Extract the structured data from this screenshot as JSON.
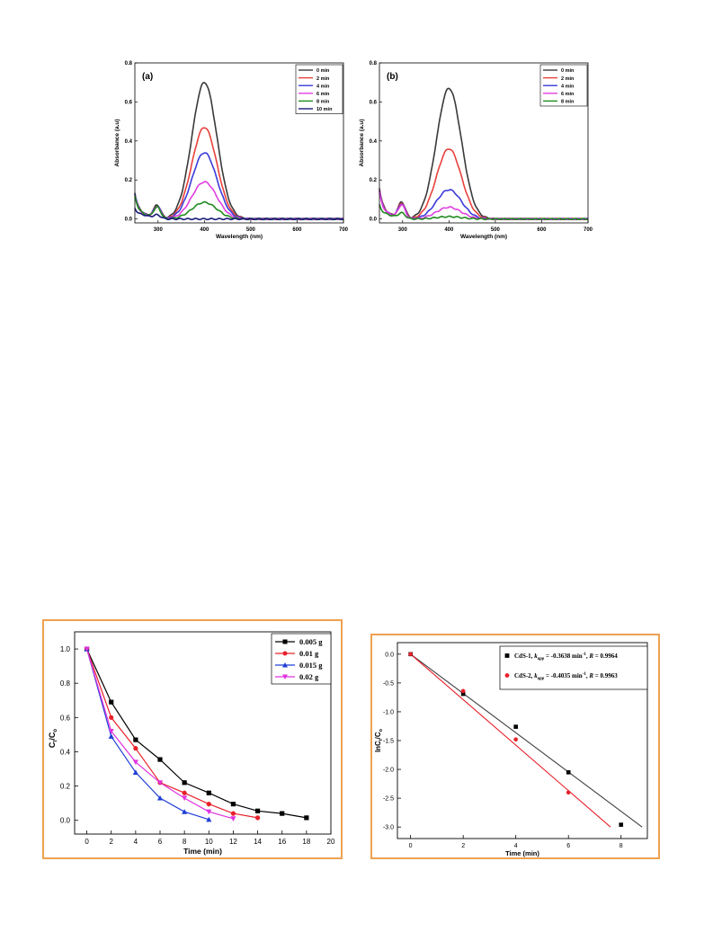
{
  "chart_data": [
    {
      "panel_label": "(a)",
      "type": "line",
      "xlabel": "Wavelength (nm)",
      "ylabel": "Absorbance (a.u)",
      "xlim": [
        250,
        700
      ],
      "ylim": [
        -0.02,
        0.8
      ],
      "xticks": [
        "300",
        "400",
        "500",
        "600",
        "700"
      ],
      "yticks": [
        "0.0",
        "0.2",
        "0.4",
        "0.6",
        "0.8"
      ],
      "legend_position": "top-right",
      "series": [
        {
          "name": "0 min",
          "color": "#3a3a3a",
          "peak": 0.7,
          "shoulder": 0.07
        },
        {
          "name": "2 min",
          "color": "#e8413c",
          "peak": 0.47,
          "shoulder": 0.065
        },
        {
          "name": "4 min",
          "color": "#3b3bd9",
          "peak": 0.34,
          "shoulder": 0.065
        },
        {
          "name": "6 min",
          "color": "#e040e0",
          "peak": 0.19,
          "shoulder": 0.06
        },
        {
          "name": "8 min",
          "color": "#1e8a1e",
          "peak": 0.085,
          "shoulder": 0.06
        },
        {
          "name": "10 min",
          "color": "#1a1a7a",
          "peak": 0.0,
          "shoulder": 0.02
        }
      ]
    },
    {
      "panel_label": "(b)",
      "type": "line",
      "xlabel": "Wavelength (nm)",
      "ylabel": "Absorbance (a.u)",
      "xlim": [
        250,
        700
      ],
      "ylim": [
        -0.02,
        0.8
      ],
      "xticks": [
        "300",
        "400",
        "500",
        "600",
        "700"
      ],
      "yticks": [
        "0.0",
        "0.2",
        "0.4",
        "0.6",
        "0.8"
      ],
      "legend_position": "top-right",
      "series": [
        {
          "name": "0 min",
          "color": "#3a3a3a",
          "peak": 0.67,
          "shoulder": 0.085
        },
        {
          "name": "2 min",
          "color": "#e8413c",
          "peak": 0.36,
          "shoulder": 0.08
        },
        {
          "name": "4 min",
          "color": "#3b3bd9",
          "peak": 0.15,
          "shoulder": 0.075
        },
        {
          "name": "6 min",
          "color": "#e040e0",
          "peak": 0.06,
          "shoulder": 0.07
        },
        {
          "name": "8 min",
          "color": "#1e8a1e",
          "peak": 0.012,
          "shoulder": 0.03
        }
      ]
    },
    {
      "type": "line",
      "xlabel": "Time (min)",
      "ylabel": "C/C",
      "ylabel_subscript_1": "t",
      "ylabel_subscript_2": "o",
      "xlim": [
        -1,
        20
      ],
      "ylim": [
        -0.08,
        1.1
      ],
      "xticks": [
        "0",
        "2",
        "4",
        "6",
        "8",
        "10",
        "12",
        "14",
        "16",
        "18",
        "20"
      ],
      "yticks": [
        "0.0",
        "0.2",
        "0.4",
        "0.6",
        "0.8",
        "1.0"
      ],
      "legend_position": "top-right",
      "series": [
        {
          "name": "0.005 g",
          "color": "#000000",
          "marker": "square",
          "x": [
            0,
            2,
            4,
            6,
            8,
            10,
            12,
            14,
            16,
            18
          ],
          "y": [
            1.0,
            0.69,
            0.47,
            0.355,
            0.22,
            0.16,
            0.095,
            0.055,
            0.04,
            0.015
          ]
        },
        {
          "name": "0.01 g",
          "color": "#e8202a",
          "marker": "circle",
          "x": [
            0,
            2,
            4,
            6,
            8,
            10,
            12,
            14
          ],
          "y": [
            1.0,
            0.6,
            0.42,
            0.22,
            0.16,
            0.095,
            0.04,
            0.015
          ]
        },
        {
          "name": "0.015 g",
          "color": "#1f3ed6",
          "marker": "triangle-up",
          "x": [
            0,
            2,
            4,
            6,
            8,
            10
          ],
          "y": [
            1.0,
            0.49,
            0.28,
            0.13,
            0.05,
            0.005
          ]
        },
        {
          "name": "0.02 g",
          "color": "#e033e0",
          "marker": "triangle-down",
          "x": [
            0,
            2,
            4,
            6,
            8,
            10,
            12
          ],
          "y": [
            1.0,
            0.52,
            0.34,
            0.22,
            0.13,
            0.05,
            0.01
          ]
        }
      ]
    },
    {
      "type": "scatter",
      "xlabel": "Time (min)",
      "ylabel": "lnC",
      "ylabel_subscript_1": "t",
      "ylabel_part2": "/C",
      "ylabel_subscript_2": "o",
      "xlim": [
        -0.5,
        9
      ],
      "ylim": [
        -3.2,
        0.2
      ],
      "xticks": [
        "0",
        "2",
        "4",
        "6",
        "8"
      ],
      "yticks": [
        "0.0",
        "-0.5",
        "-1.0",
        "-1.5",
        "-2.0",
        "-2.5",
        "-3.0"
      ],
      "legend_position": "top-right",
      "series": [
        {
          "name": "CdS-1, ",
          "k_label": "k",
          "k_sub": "app",
          "fit_text": " = -0.3638 min",
          "unit_sup": "-1",
          "r_label": "R",
          "r_text": " = 0.9964",
          "color": "#000000",
          "line_color": "#404040",
          "marker": "square",
          "x": [
            0,
            2,
            4,
            6,
            8
          ],
          "y": [
            0.0,
            -0.69,
            -1.26,
            -2.05,
            -2.96
          ],
          "fit_x": [
            0,
            8.8
          ],
          "fit_y": [
            0.0,
            -3.0
          ]
        },
        {
          "name": "CdS-2, ",
          "k_label": "k",
          "k_sub": "app",
          "fit_text": " = -0.4035 min",
          "unit_sup": "-1",
          "r_label": "R",
          "r_text": " = 0.9963",
          "color": "#e8202a",
          "line_color": "#e8202a",
          "marker": "circle",
          "x": [
            0,
            2,
            4,
            6
          ],
          "y": [
            0.0,
            -0.64,
            -1.48,
            -2.4
          ],
          "fit_x": [
            0,
            7.6
          ],
          "fit_y": [
            0.0,
            -3.0
          ]
        }
      ]
    }
  ]
}
